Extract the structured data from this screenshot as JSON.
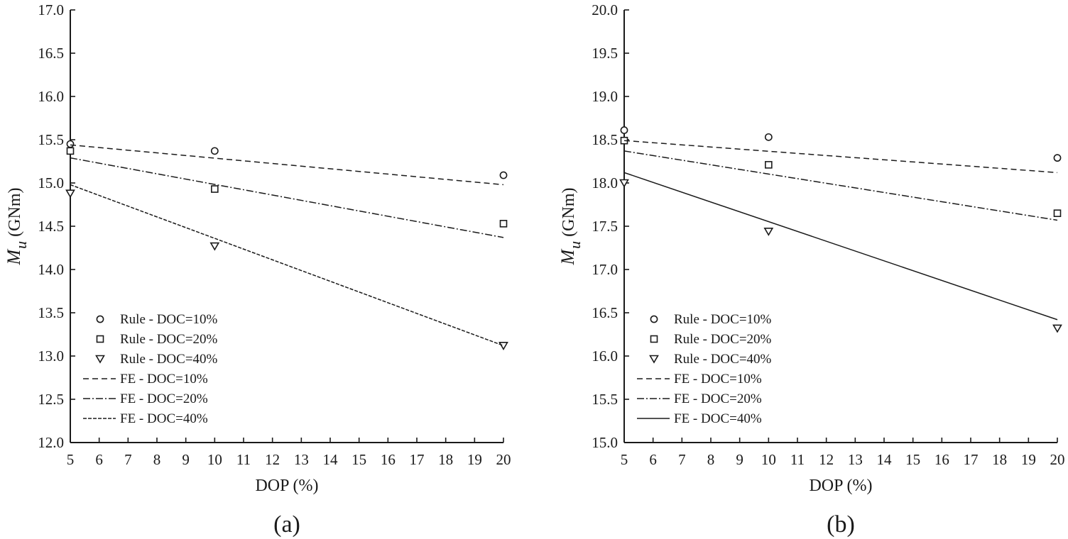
{
  "chart_data": [
    {
      "type": "scatter",
      "panel_label": "(a)",
      "xlabel": "DOP (%)",
      "ylabel_symbol": "M",
      "ylabel_subscript": "u",
      "ylabel_unit": "(GNm)",
      "xlim": [
        5,
        20
      ],
      "ylim": [
        12.0,
        17.0
      ],
      "xticks": [
        "5",
        "6",
        "7",
        "8",
        "9",
        "10",
        "11",
        "12",
        "13",
        "14",
        "15",
        "16",
        "17",
        "18",
        "19",
        "20"
      ],
      "yticks": [
        "12.0",
        "12.5",
        "13.0",
        "13.5",
        "14.0",
        "14.5",
        "15.0",
        "15.5",
        "16.0",
        "16.5",
        "17.0"
      ],
      "series": [
        {
          "name": "Rule - DOC=10%",
          "kind": "marker",
          "marker": "circle",
          "x": [
            5,
            10,
            20
          ],
          "y": [
            15.45,
            15.37,
            15.09
          ]
        },
        {
          "name": "Rule - DOC=20%",
          "kind": "marker",
          "marker": "square",
          "x": [
            5,
            10,
            20
          ],
          "y": [
            15.37,
            14.93,
            14.53
          ]
        },
        {
          "name": "Rule - DOC=40%",
          "kind": "marker",
          "marker": "triangle-down",
          "x": [
            5,
            10,
            20
          ],
          "y": [
            14.88,
            14.27,
            13.12
          ]
        },
        {
          "name": "FE - DOC=10%",
          "kind": "line",
          "dash": "dashed",
          "x": [
            5,
            20
          ],
          "y": [
            15.44,
            14.98
          ]
        },
        {
          "name": "FE - DOC=20%",
          "kind": "line",
          "dash": "dashdot",
          "x": [
            5,
            20
          ],
          "y": [
            15.29,
            14.37
          ]
        },
        {
          "name": "FE - DOC=40%",
          "kind": "line",
          "dash": "longdash",
          "x": [
            5,
            20
          ],
          "y": [
            14.98,
            13.12
          ]
        }
      ]
    },
    {
      "type": "scatter",
      "panel_label": "(b)",
      "xlabel": "DOP (%)",
      "ylabel_symbol": "M",
      "ylabel_subscript": "u",
      "ylabel_unit": "(GNm)",
      "xlim": [
        5,
        20
      ],
      "ylim": [
        15.0,
        20.0
      ],
      "xticks": [
        "5",
        "6",
        "7",
        "8",
        "9",
        "10",
        "11",
        "12",
        "13",
        "14",
        "15",
        "16",
        "17",
        "18",
        "19",
        "20"
      ],
      "yticks": [
        "15.0",
        "15.5",
        "16.0",
        "16.5",
        "17.0",
        "17.5",
        "18.0",
        "18.5",
        "19.0",
        "19.5",
        "20.0"
      ],
      "series": [
        {
          "name": "Rule - DOC=10%",
          "kind": "marker",
          "marker": "circle",
          "x": [
            5,
            10,
            20
          ],
          "y": [
            18.61,
            18.53,
            18.29
          ]
        },
        {
          "name": "Rule - DOC=20%",
          "kind": "marker",
          "marker": "square",
          "x": [
            5,
            10,
            20
          ],
          "y": [
            18.49,
            18.21,
            17.65
          ]
        },
        {
          "name": "Rule - DOC=40%",
          "kind": "marker",
          "marker": "triangle-down",
          "x": [
            5,
            10,
            20
          ],
          "y": [
            18.0,
            17.44,
            16.32
          ]
        },
        {
          "name": "FE - DOC=10%",
          "kind": "line",
          "dash": "dashed",
          "x": [
            5,
            20
          ],
          "y": [
            18.49,
            18.12
          ]
        },
        {
          "name": "FE - DOC=20%",
          "kind": "line",
          "dash": "dashdot",
          "x": [
            5,
            20
          ],
          "y": [
            18.37,
            17.57
          ]
        },
        {
          "name": "FE - DOC=40%",
          "kind": "line",
          "dash": "solid",
          "x": [
            5,
            20
          ],
          "y": [
            18.12,
            16.42
          ]
        }
      ]
    }
  ]
}
